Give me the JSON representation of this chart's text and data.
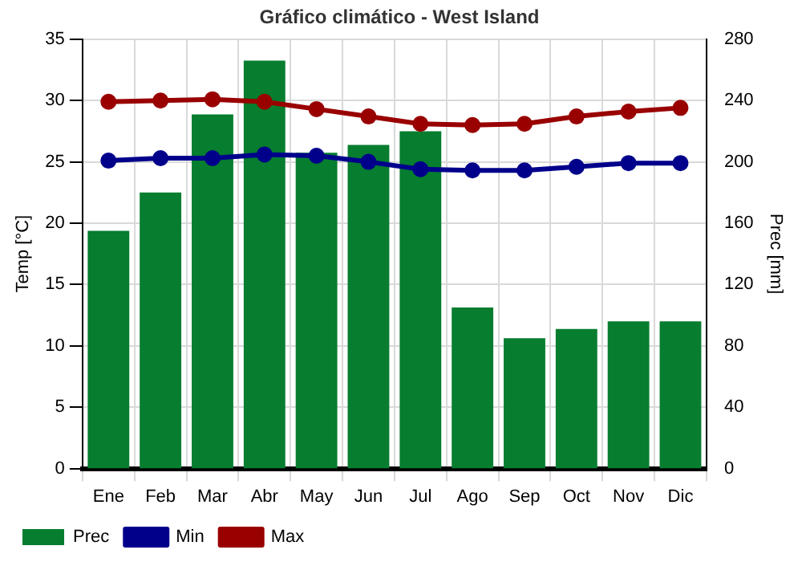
{
  "chart_data": {
    "type": "bar",
    "title": "Gráfico climático - West Island",
    "categories": [
      "Ene",
      "Feb",
      "Mar",
      "Abr",
      "May",
      "Jun",
      "Jul",
      "Ago",
      "Sep",
      "Oct",
      "Nov",
      "Dic"
    ],
    "series": [
      {
        "name": "Prec",
        "axis": "y2",
        "color": "#067d2f",
        "values": [
          155,
          180,
          231,
          266,
          206,
          211,
          220,
          105,
          85,
          91,
          96,
          96
        ]
      },
      {
        "name": "Min",
        "type": "line",
        "axis": "y",
        "color": "#00008b",
        "values": [
          25.1,
          25.3,
          25.3,
          25.6,
          25.5,
          25.0,
          24.4,
          24.3,
          24.3,
          24.6,
          24.9,
          24.9
        ]
      },
      {
        "name": "Max",
        "type": "line",
        "axis": "y",
        "color": "#990000",
        "values": [
          29.9,
          30.0,
          30.1,
          29.9,
          29.3,
          28.7,
          28.1,
          28.0,
          28.1,
          28.7,
          29.1,
          29.4
        ]
      }
    ],
    "ylabel": "Temp [°C]",
    "y2label": "Prec [mm]",
    "ylim": [
      0,
      35
    ],
    "yticks": [
      0,
      5,
      10,
      15,
      20,
      25,
      30,
      35
    ],
    "y2lim": [
      0,
      280
    ],
    "y2ticks": [
      0,
      40,
      80,
      120,
      160,
      200,
      240,
      280
    ],
    "grid": true,
    "legend": "bottom",
    "marker": "circle",
    "line_style": "solid"
  }
}
